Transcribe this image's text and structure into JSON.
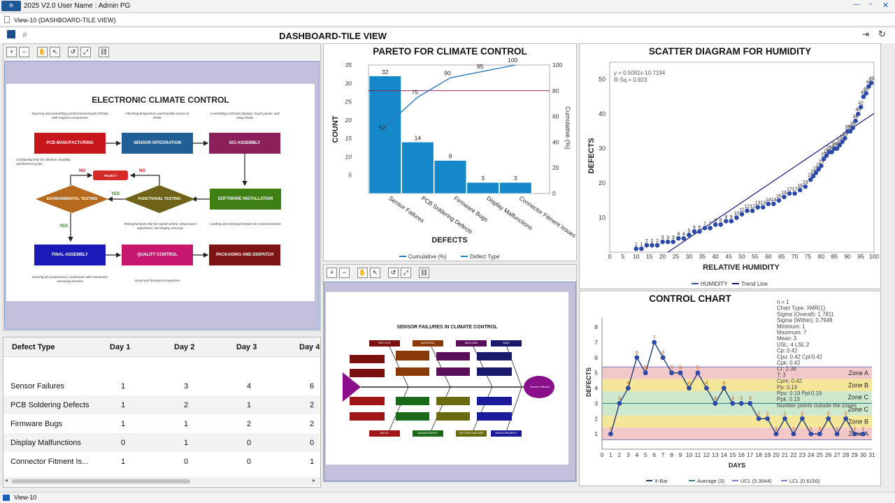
{
  "app": {
    "title": "2025 V2.0  User Name : Admin PG",
    "logo": "app-logo-icon"
  },
  "tab": {
    "label": "View-10 (DASHBOARD-TILE VIEW)"
  },
  "header": {
    "title": "DASHBOARD-TILE VIEW"
  },
  "statusbar": {
    "label": "View-10"
  },
  "flow": {
    "title": "ELECTRONIC CLIMATE CONTROL",
    "boxes": [
      "PCB MANUFACTURING",
      "SENSOR INTEGRATION",
      "DCI ASSEMBLY",
      "REJECT",
      "ENVIRONMENTAL TESTING",
      "FUNCTIONAL TESTING",
      "SOFTWARE INSTALLATION",
      "FINAL ASSEMBLY",
      "QUALITY CONTROL",
      "PACKAGING AND DISPATCH"
    ],
    "notes": [
      "Sourcing and assembling printed circuit boards (PCBs) with required components",
      "Attaching temperature and humidity sensor to PCBs",
      "Assembling LCD/LED displays, touch panels, and rotary knobs",
      "Conducting tests for vibration, humidity, and thermal cycles.",
      "Testing functions like fan speed control, temperature adjustment, and display accuracy",
      "Loading and verifying firmware for control functions",
      "Housing all components in enclosures with connectors and wiring harness",
      "Visual and functional inspections"
    ],
    "labels": {
      "no1": "NO",
      "no2": "NO",
      "yes1": "YES",
      "yes2": "YES"
    }
  },
  "table": {
    "headers": [
      "Defect Type",
      "Day 1",
      "Day 2",
      "Day 3",
      "Day 4"
    ],
    "rows": [
      [
        "Sensor Failures",
        "1",
        "3",
        "4",
        "6"
      ],
      [
        "PCB Soldering Defects",
        "1",
        "2",
        "1",
        "2"
      ],
      [
        "Firmware Bugs",
        "1",
        "1",
        "2",
        "2"
      ],
      [
        "Display Malfunctions",
        "0",
        "1",
        "0",
        "0"
      ],
      [
        "Connector Fitment Is...",
        "1",
        "0",
        "0",
        "1"
      ]
    ]
  },
  "fishbone": {
    "title": "SENSOR FAILURES IN CLIMATE CONTROL",
    "categories": [
      "METHOD",
      "MATERIAL",
      "MACHINE",
      "MAN",
      "MILEU",
      "MANAGEMENT",
      "MOTHER NATURE",
      "MEASUREMENT"
    ],
    "head": "Sensor Failures"
  },
  "chart_data": [
    {
      "type": "bar",
      "title": "PARETO FOR CLIMATE CONTROL",
      "xlabel": "DEFECTS",
      "ylabel": "COUNT",
      "y2label": "Cumulative (%)",
      "categories": [
        "Sensor Failures",
        "PCB Soldering Defects",
        "Firmware Bugs",
        "Display Malfunctions",
        "Connector Fitment Issues"
      ],
      "values": [
        32,
        14,
        9,
        3,
        3
      ],
      "cumulative": [
        52,
        75,
        90,
        95,
        100
      ],
      "ylim": [
        0,
        35
      ],
      "y2lim": [
        0,
        100
      ],
      "ref_line": 80,
      "yticks": [
        "5",
        "10",
        "15",
        "20",
        "25",
        "30",
        "35"
      ],
      "y2ticks": [
        "0",
        "20",
        "40",
        "60",
        "80",
        "100"
      ],
      "legend": [
        "Cumulative (%)",
        "Defect Type"
      ],
      "colors": {
        "bar": "#1488c8",
        "line": "#2a7bbd",
        "ref": "#8a2060"
      }
    },
    {
      "type": "scatter",
      "title": "SCATTER DIAGRAM FOR HUMIDITY",
      "xlabel": "RELATIVE HUMIDITY",
      "ylabel": "DEFECTS",
      "xlim": [
        0,
        100
      ],
      "ylim": [
        0,
        55
      ],
      "xticks": [
        "0",
        "5",
        "10",
        "15",
        "20",
        "25",
        "30",
        "35",
        "40",
        "45",
        "50",
        "55",
        "60",
        "65",
        "70",
        "75",
        "80",
        "85",
        "90",
        "95",
        "100"
      ],
      "yticks": [
        "10",
        "20",
        "30",
        "40",
        "50"
      ],
      "equation": "y = 0.5091x-10.7194",
      "rsq": "R-Sq = 0.923",
      "trend": [
        [
          22,
          0
        ],
        [
          100,
          40.2
        ]
      ],
      "x": [
        10,
        12,
        14,
        16,
        18,
        20,
        22,
        24,
        26,
        28,
        30,
        32,
        34,
        36,
        38,
        40,
        42,
        44,
        46,
        48,
        50,
        52,
        54,
        56,
        58,
        60,
        62,
        64,
        66,
        68,
        70,
        72,
        74,
        76,
        77,
        78,
        79,
        80,
        81,
        82,
        83,
        84,
        85,
        86,
        87,
        88,
        89,
        90,
        91,
        92,
        93,
        94,
        95,
        96,
        97,
        98,
        99
      ],
      "y": [
        1,
        1,
        2,
        2,
        2,
        3,
        3,
        3,
        4,
        4,
        5,
        6,
        6,
        7,
        7,
        8,
        8,
        9,
        9,
        10,
        11,
        12,
        12,
        13,
        13,
        14,
        14,
        15,
        16,
        17,
        17,
        18,
        19,
        21,
        22,
        23,
        24,
        25,
        27,
        28,
        29,
        29,
        30,
        30,
        31,
        32,
        33,
        35,
        35,
        36,
        38,
        40,
        42,
        45,
        46,
        48,
        49
      ],
      "legend": [
        "HUMIDITY",
        "Trend Line"
      ],
      "colors": {
        "point": "#2e4aa8",
        "trend": "#14147a"
      }
    },
    {
      "type": "line",
      "title": "CONTROL CHART",
      "xlabel": "DAYS",
      "ylabel": "DEFECTS",
      "x": [
        1,
        2,
        3,
        4,
        5,
        6,
        7,
        8,
        9,
        10,
        11,
        12,
        13,
        14,
        15,
        16,
        17,
        18,
        19,
        20,
        21,
        22,
        23,
        24,
        25,
        26,
        27,
        28,
        29,
        30
      ],
      "values": [
        1,
        3,
        4,
        6,
        5,
        7,
        6,
        5,
        5,
        4,
        5,
        4,
        3,
        4,
        3,
        3,
        3,
        2,
        2,
        1,
        2,
        1,
        2,
        1,
        1,
        2,
        1,
        2,
        1,
        1
      ],
      "xlim": [
        0,
        31
      ],
      "ylim": [
        0,
        8.6
      ],
      "xticks": [
        "0",
        "1",
        "2",
        "3",
        "4",
        "5",
        "6",
        "7",
        "8",
        "9",
        "10",
        "11",
        "12",
        "13",
        "14",
        "15",
        "16",
        "17",
        "18",
        "19",
        "20",
        "21",
        "22",
        "23",
        "24",
        "25",
        "26",
        "27",
        "28",
        "29",
        "30",
        "31"
      ],
      "yticks": [
        "1",
        "2",
        "3",
        "4",
        "5",
        "6",
        "7",
        "8"
      ],
      "average": 3,
      "ucl": 5.3844,
      "lcl": 0.6156,
      "zones": [
        "Zone A",
        "Zone B",
        "Zone C",
        "Zone C",
        "Zone B",
        "Zone A"
      ],
      "stats": [
        "n = 1",
        "Chart Type: XMR(1)",
        "Sigma (Overall): 1.7811",
        "Sigma (Within): 0.7948",
        "Minimum: 1",
        "Maximum: 7",
        "Mean: 3",
        "USL: 4  LSL:2",
        "Cp: 0.42",
        "Cpu: 0.42  Cpl:0.42",
        "Cpk: 0.42",
        "Cr: 2.38",
        "T: 3",
        "Cpm: 0.42",
        "Pp: 0.19",
        "Ppu: 0.19  Ppl:0.19",
        "Ppk: 0.19",
        "Number points outside the zones"
      ],
      "legend": [
        "X-Bar",
        "Average (3)",
        "UCL (5.3844)",
        "LCL (0.6156)"
      ],
      "colors": {
        "line": "#1f3c6e",
        "point": "#2e4aa8",
        "avg": "#2a8a8a",
        "zoneA": "#f2c8c8",
        "zoneB": "#f5e79a",
        "zoneC": "#cde8cd"
      }
    }
  ]
}
